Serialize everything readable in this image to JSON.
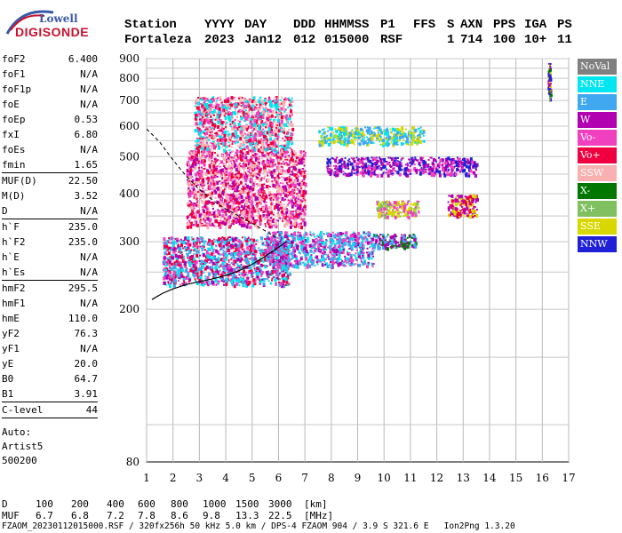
{
  "logo": {
    "line1": "Lowell",
    "line2": "DIGISONDE"
  },
  "header": {
    "labels": [
      "Station",
      "YYYY",
      "DAY",
      "DDD",
      "HHMMSS",
      "P1",
      "FFS",
      "S",
      "AXN",
      "PPS",
      "IGA",
      "PS"
    ],
    "values": [
      "Fortaleza",
      "2023",
      "Jan12",
      "012",
      "015000",
      "RSF",
      "",
      "1",
      "714",
      "100",
      "10+",
      "11"
    ]
  },
  "params": {
    "group1": [
      {
        "name": "foF2",
        "value": "6.400"
      },
      {
        "name": "foF1",
        "value": "N/A"
      },
      {
        "name": "foF1p",
        "value": "N/A"
      },
      {
        "name": "foE",
        "value": "N/A"
      },
      {
        "name": "foEp",
        "value": "0.53"
      },
      {
        "name": "fxI",
        "value": "6.80"
      },
      {
        "name": "foEs",
        "value": "N/A"
      },
      {
        "name": "fmin",
        "value": "1.65"
      }
    ],
    "group2": [
      {
        "name": "MUF(D)",
        "value": "22.50"
      },
      {
        "name": "M(D)",
        "value": "3.52"
      },
      {
        "name": "D",
        "value": "N/A"
      }
    ],
    "group3": [
      {
        "name": "h`F",
        "value": "235.0"
      },
      {
        "name": "h`F2",
        "value": "235.0"
      },
      {
        "name": "h`E",
        "value": "N/A"
      },
      {
        "name": "h`Es",
        "value": "N/A"
      }
    ],
    "group4": [
      {
        "name": "hmF2",
        "value": "295.5"
      },
      {
        "name": "hmF1",
        "value": "N/A"
      },
      {
        "name": "hmE",
        "value": "110.0"
      },
      {
        "name": "yF2",
        "value": "76.3"
      },
      {
        "name": "yF1",
        "value": "N/A"
      },
      {
        "name": "yE",
        "value": "20.0"
      },
      {
        "name": "B0",
        "value": "64.7"
      },
      {
        "name": "B1",
        "value": "3.91"
      }
    ],
    "group5": [
      {
        "name": "C-level",
        "value": "44"
      }
    ]
  },
  "autoscaling": {
    "line1": "Auto:",
    "line2": "Artist5",
    "line3": "500200"
  },
  "legend": [
    {
      "label": "NoVal",
      "color": "#808080"
    },
    {
      "label": "NNE",
      "color": "#00e5f0"
    },
    {
      "label": "E",
      "color": "#40a8f0"
    },
    {
      "label": "W",
      "color": "#b000b0"
    },
    {
      "label": "Vo-",
      "color": "#f040c0"
    },
    {
      "label": "Vo+",
      "color": "#f00040"
    },
    {
      "label": "SSW",
      "color": "#f8b0b0"
    },
    {
      "label": "X-",
      "color": "#007800"
    },
    {
      "label": "X+",
      "color": "#80c060"
    },
    {
      "label": "SSE",
      "color": "#d8d800"
    },
    {
      "label": "NNW",
      "color": "#2020d8"
    }
  ],
  "bottom": {
    "row_d_label": "D",
    "row_d_values": [
      "100",
      "200",
      "400",
      "600",
      "800",
      "1000",
      "1500",
      "3000",
      "[km]"
    ],
    "row_muf_label": "MUF",
    "row_muf_values": [
      "6.7",
      "6.8",
      "7.2",
      "7.8",
      "8.6",
      "9.8",
      "13.3",
      "22.5",
      "[MHz]"
    ],
    "footer": "FZAOM_20230112015000.RSF / 320fx256h 50 kHz 5.0 km / DPS-4 FZAOM 904 / 3.9 S 321.6 E   Ion2Png 1.3.20"
  },
  "chart_data": {
    "type": "scatter",
    "xlim": [
      1,
      17
    ],
    "ylim": [
      80,
      900
    ],
    "x_ticks": [
      1,
      2,
      3,
      4,
      5,
      6,
      7,
      8,
      9,
      10,
      11,
      12,
      13,
      14,
      15,
      16,
      17
    ],
    "y_ticks": [
      80,
      200,
      300,
      400,
      500,
      600,
      700,
      800,
      900
    ],
    "y_scale": "log",
    "grid": true,
    "legend_placement": "right",
    "profile_curve": {
      "x": [
        1.2,
        1.6,
        2.0,
        2.5,
        3.0,
        3.5,
        4.0,
        4.5,
        5.0,
        5.5,
        6.0,
        6.3
      ],
      "y": [
        212,
        220,
        226,
        232,
        236,
        240,
        245,
        252,
        262,
        275,
        290,
        300
      ]
    },
    "dashed_curve": {
      "x": [
        1.0,
        1.5,
        2.0,
        2.5,
        3.0,
        3.5,
        4.0,
        4.5,
        5.0,
        5.5,
        6.0
      ],
      "y": [
        590,
        545,
        490,
        445,
        410,
        385,
        365,
        350,
        335,
        320,
        305
      ]
    },
    "echo_clusters": [
      {
        "x0": 1.6,
        "x1": 6.4,
        "y0": 232,
        "y1": 310,
        "dir": [
          1,
          2,
          3,
          4,
          5
        ]
      },
      {
        "x0": 5.5,
        "x1": 9.6,
        "y0": 260,
        "y1": 320,
        "dir": [
          1,
          2,
          3,
          4
        ]
      },
      {
        "x0": 9.6,
        "x1": 11.2,
        "y0": 290,
        "y1": 315,
        "dir": [
          2,
          3,
          7
        ]
      },
      {
        "x0": 9.7,
        "x1": 11.3,
        "y0": 350,
        "y1": 385,
        "dir": [
          9,
          4,
          8
        ]
      },
      {
        "x0": 12.4,
        "x1": 13.5,
        "y0": 350,
        "y1": 400,
        "dir": [
          9,
          3,
          5
        ]
      },
      {
        "x0": 7.8,
        "x1": 13.5,
        "y0": 450,
        "y1": 500,
        "dir": [
          10,
          3,
          4
        ]
      },
      {
        "x0": 2.5,
        "x1": 7.0,
        "y0": 330,
        "y1": 520,
        "dir": [
          4,
          5,
          6,
          3
        ]
      },
      {
        "x0": 2.8,
        "x1": 6.5,
        "y0": 520,
        "y1": 720,
        "dir": [
          4,
          5,
          6,
          1
        ]
      },
      {
        "x0": 7.5,
        "x1": 11.5,
        "y0": 540,
        "y1": 600,
        "dir": [
          1,
          9,
          2
        ]
      },
      {
        "x0": 16.2,
        "x1": 16.3,
        "y0": 700,
        "y1": 880,
        "dir": [
          3,
          7,
          9,
          10
        ]
      }
    ]
  }
}
